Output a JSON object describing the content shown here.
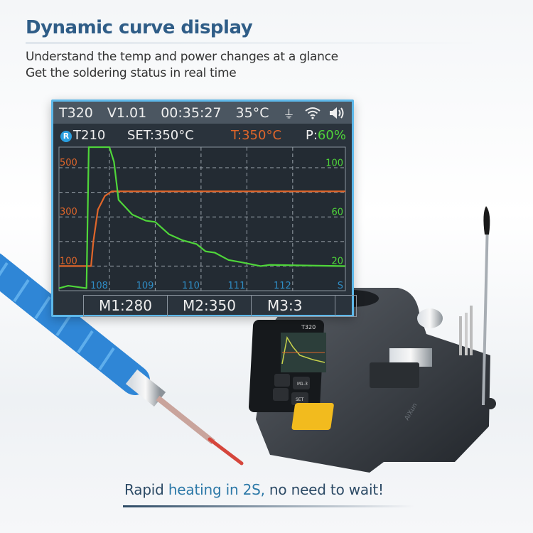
{
  "headline": "Dynamic curve display",
  "subtitle_lines": [
    "Understand the temp and power changes at a glance",
    "Get the soldering status in real time"
  ],
  "screen": {
    "status_bar": {
      "model": "T320",
      "version": "V1.01",
      "time": "00:35:27",
      "ambient_temp": "35°C",
      "icons": [
        "usb-icon",
        "wifi-icon",
        "speaker-icon"
      ]
    },
    "info_row": {
      "badge": "R",
      "tip": "T210",
      "set": "SET:350°C",
      "temp_label": "T:",
      "temp_value": "350°C",
      "power_label": "P:",
      "power_value": "60%"
    },
    "presets": [
      "M1:280",
      "M2:350",
      "M3:3"
    ]
  },
  "chart_data": {
    "type": "line",
    "x_ticks": [
      "108",
      "109",
      "110",
      "111",
      "112"
    ],
    "x_unit": "S",
    "xlim": [
      106.9,
      113.15
    ],
    "y_left_ticks": [
      "500",
      "300",
      "100"
    ],
    "y_right_ticks": [
      "100",
      "60",
      "20"
    ],
    "ylim_left": [
      0,
      584
    ],
    "ylim_right": [
      0,
      117
    ],
    "grid": true,
    "series": [
      {
        "axis": "left",
        "color": "#e0662a",
        "points": [
          [
            106.9,
            100
          ],
          [
            107.6,
            100
          ],
          [
            107.65,
            200
          ],
          [
            107.75,
            330
          ],
          [
            107.9,
            385
          ],
          [
            108.05,
            404
          ],
          [
            113.15,
            404
          ]
        ]
      },
      {
        "axis": "right",
        "color": "#4fd63a",
        "points": [
          [
            106.9,
            2
          ],
          [
            107.1,
            4
          ],
          [
            107.5,
            2
          ],
          [
            107.55,
            117
          ],
          [
            108.0,
            117
          ],
          [
            108.1,
            105
          ],
          [
            108.2,
            74
          ],
          [
            108.5,
            62
          ],
          [
            108.8,
            57
          ],
          [
            109.0,
            56
          ],
          [
            109.3,
            46
          ],
          [
            109.6,
            41
          ],
          [
            109.9,
            38
          ],
          [
            110.1,
            32
          ],
          [
            110.3,
            31
          ],
          [
            110.6,
            25
          ],
          [
            110.9,
            23
          ],
          [
            111.3,
            20
          ],
          [
            111.5,
            21
          ],
          [
            113.15,
            20
          ]
        ]
      }
    ]
  },
  "product": {
    "brand": "AiXun",
    "model": "T320",
    "buttons": [
      "M1-3",
      "SET"
    ]
  },
  "tagline": {
    "before": "Rapid ",
    "highlight": "heating in 2S,",
    "after": " no need to wait!"
  },
  "colors": {
    "headline": "#2f5d87",
    "screen_border": "#5db8ea",
    "temp": "#e0662a",
    "power": "#4fd63a",
    "axis_x": "#2f8cc4",
    "pad": "#f2bb1e",
    "handle": "#3a8fd8"
  }
}
